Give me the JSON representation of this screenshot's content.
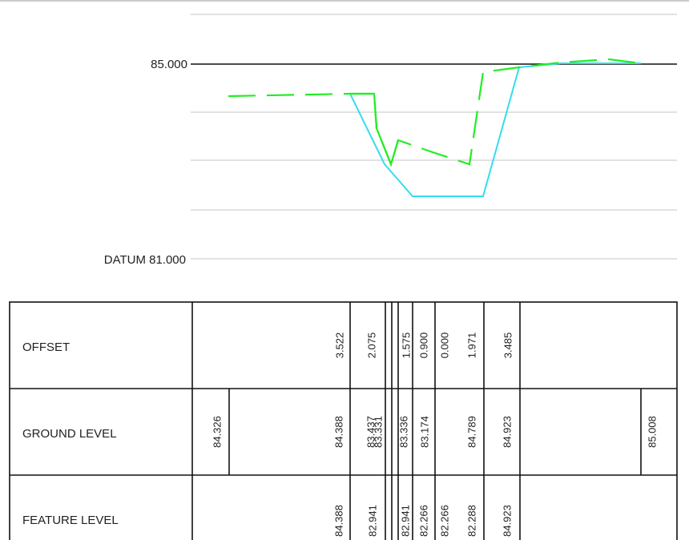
{
  "axis_labels": {
    "top_level": "85.000",
    "datum": "DATUM 81.000"
  },
  "table": {
    "rows": [
      {
        "label": "OFFSET",
        "cells": [
          "3.522",
          "2.075",
          "1.575",
          "0.900",
          "0.000",
          "1.971",
          "3.485"
        ]
      },
      {
        "label": "GROUND LEVEL",
        "cells": [
          "84.326",
          "84.388",
          "83.437",
          "83.331",
          "83.336",
          "83.174",
          "84.789",
          "84.923",
          "85.008"
        ]
      },
      {
        "label": "FEATURE LEVEL",
        "cells": [
          "84.388",
          "82.941",
          "82.941",
          "82.266",
          "82.266",
          "82.288",
          "84.923"
        ]
      }
    ]
  }
}
